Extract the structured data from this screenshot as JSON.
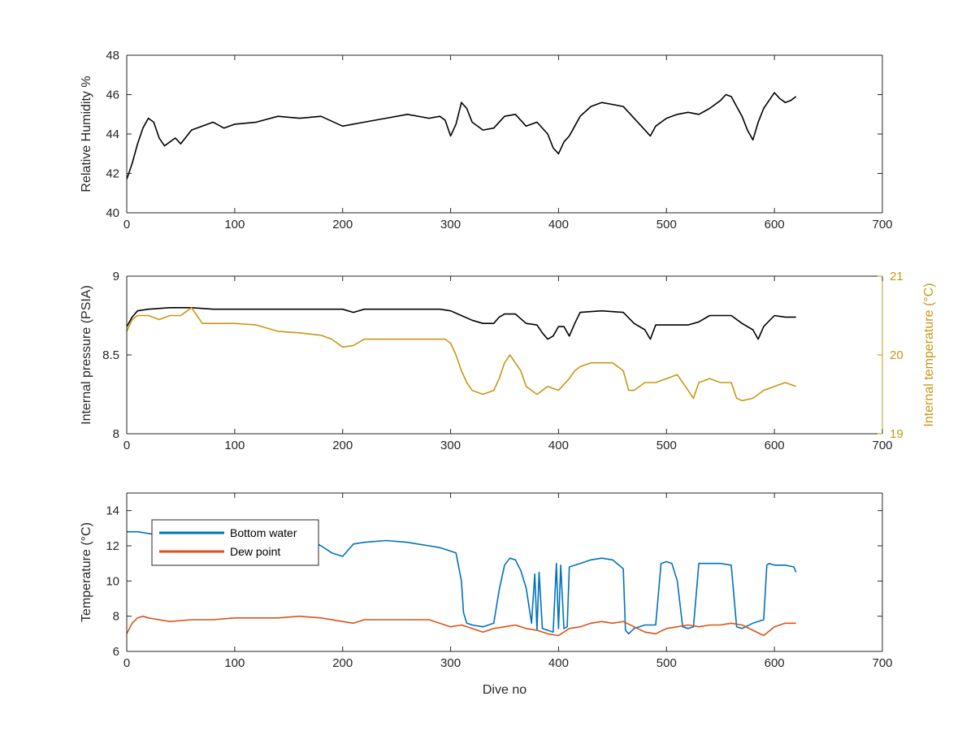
{
  "chart_data": [
    {
      "type": "line",
      "title": "",
      "xlabel": "",
      "ylabel": "Relative Humidity %",
      "xlim": [
        0,
        700
      ],
      "ylim": [
        40,
        48
      ],
      "xticks": [
        "0",
        "100",
        "200",
        "300",
        "400",
        "500",
        "600",
        "700"
      ],
      "yticks": [
        "40",
        "42",
        "44",
        "46",
        "48"
      ],
      "grid": false,
      "series": [
        {
          "color": "#000000",
          "x": [
            0,
            5,
            10,
            15,
            20,
            25,
            30,
            35,
            40,
            45,
            50,
            60,
            70,
            80,
            90,
            100,
            120,
            140,
            160,
            180,
            200,
            220,
            240,
            260,
            280,
            290,
            295,
            300,
            305,
            310,
            315,
            320,
            330,
            340,
            350,
            360,
            370,
            380,
            390,
            395,
            400,
            405,
            410,
            415,
            420,
            430,
            440,
            450,
            460,
            470,
            480,
            485,
            490,
            500,
            510,
            520,
            530,
            540,
            550,
            555,
            560,
            565,
            570,
            575,
            580,
            585,
            590,
            595,
            600,
            605,
            610,
            615,
            620
          ],
          "y": [
            41.7,
            42.5,
            43.5,
            44.3,
            44.8,
            44.6,
            43.8,
            43.4,
            43.6,
            43.8,
            43.5,
            44.2,
            44.4,
            44.6,
            44.3,
            44.5,
            44.6,
            44.9,
            44.8,
            44.9,
            44.4,
            44.6,
            44.8,
            45.0,
            44.8,
            44.9,
            44.7,
            43.9,
            44.5,
            45.6,
            45.3,
            44.6,
            44.2,
            44.3,
            44.9,
            45.0,
            44.4,
            44.6,
            44.0,
            43.3,
            43.0,
            43.6,
            43.9,
            44.4,
            44.9,
            45.4,
            45.6,
            45.5,
            45.4,
            44.8,
            44.2,
            43.9,
            44.4,
            44.8,
            45.0,
            45.1,
            45.0,
            45.3,
            45.7,
            46.0,
            45.9,
            45.4,
            44.9,
            44.2,
            43.7,
            44.6,
            45.3,
            45.7,
            46.1,
            45.8,
            45.6,
            45.7,
            45.9
          ]
        }
      ]
    },
    {
      "type": "line",
      "title": "",
      "xlabel": "",
      "ylabel": "Internal pressure (PSIA)",
      "y2label": "Internal temperature (°C)",
      "xlim": [
        0,
        700
      ],
      "ylim": [
        8,
        9
      ],
      "y2lim": [
        19,
        21
      ],
      "xticks": [
        "0",
        "100",
        "200",
        "300",
        "400",
        "500",
        "600",
        "700"
      ],
      "yticks": [
        "8",
        "8.5",
        "9"
      ],
      "y2ticks": [
        "19",
        "20",
        "21"
      ],
      "grid": false,
      "series": [
        {
          "axis": "left",
          "color": "#000000",
          "x": [
            0,
            5,
            10,
            20,
            40,
            60,
            80,
            100,
            150,
            200,
            210,
            220,
            250,
            290,
            300,
            310,
            320,
            330,
            340,
            345,
            350,
            360,
            370,
            380,
            385,
            390,
            395,
            400,
            405,
            410,
            415,
            420,
            440,
            460,
            470,
            480,
            485,
            490,
            500,
            520,
            530,
            540,
            560,
            570,
            580,
            585,
            590,
            600,
            610,
            620
          ],
          "y": [
            8.68,
            8.74,
            8.78,
            8.79,
            8.8,
            8.8,
            8.79,
            8.79,
            8.79,
            8.79,
            8.77,
            8.79,
            8.79,
            8.79,
            8.78,
            8.75,
            8.72,
            8.7,
            8.7,
            8.74,
            8.76,
            8.76,
            8.7,
            8.69,
            8.64,
            8.6,
            8.62,
            8.68,
            8.68,
            8.62,
            8.7,
            8.77,
            8.78,
            8.77,
            8.7,
            8.66,
            8.6,
            8.69,
            8.69,
            8.69,
            8.71,
            8.75,
            8.75,
            8.7,
            8.66,
            8.6,
            8.68,
            8.75,
            8.74,
            8.74
          ]
        },
        {
          "axis": "right",
          "color": "#C89713",
          "x": [
            0,
            5,
            10,
            20,
            30,
            40,
            50,
            60,
            70,
            80,
            100,
            120,
            140,
            160,
            180,
            190,
            200,
            210,
            220,
            240,
            260,
            280,
            290,
            295,
            300,
            305,
            310,
            315,
            320,
            330,
            340,
            345,
            350,
            355,
            360,
            365,
            370,
            380,
            390,
            400,
            410,
            415,
            420,
            430,
            440,
            450,
            460,
            465,
            470,
            480,
            490,
            500,
            510,
            520,
            525,
            530,
            540,
            550,
            560,
            565,
            570,
            580,
            590,
            600,
            610,
            620
          ],
          "y": [
            20.3,
            20.45,
            20.5,
            20.5,
            20.45,
            20.5,
            20.5,
            20.6,
            20.4,
            20.4,
            20.4,
            20.38,
            20.3,
            20.28,
            20.25,
            20.2,
            20.1,
            20.12,
            20.2,
            20.2,
            20.2,
            20.2,
            20.2,
            20.2,
            20.15,
            20.0,
            19.8,
            19.65,
            19.55,
            19.5,
            19.55,
            19.7,
            19.9,
            20.0,
            19.9,
            19.8,
            19.6,
            19.5,
            19.6,
            19.55,
            19.7,
            19.8,
            19.85,
            19.9,
            19.9,
            19.9,
            19.8,
            19.55,
            19.55,
            19.65,
            19.65,
            19.7,
            19.75,
            19.55,
            19.45,
            19.65,
            19.7,
            19.65,
            19.65,
            19.45,
            19.42,
            19.45,
            19.55,
            19.6,
            19.65,
            19.6
          ]
        }
      ]
    },
    {
      "type": "line",
      "title": "",
      "xlabel": "Dive no",
      "ylabel": "Temperature (°C)",
      "xlim": [
        0,
        700
      ],
      "ylim": [
        6,
        15
      ],
      "xticks": [
        "0",
        "100",
        "200",
        "300",
        "400",
        "500",
        "600",
        "700"
      ],
      "yticks": [
        "6",
        "8",
        "10",
        "12",
        "14"
      ],
      "grid": false,
      "legend_position": "top-left",
      "series": [
        {
          "name": "Bottom water",
          "color": "#0072BD",
          "x": [
            0,
            10,
            20,
            30,
            50,
            80,
            120,
            150,
            170,
            180,
            190,
            200,
            210,
            220,
            240,
            260,
            280,
            290,
            300,
            305,
            310,
            312,
            315,
            320,
            330,
            340,
            345,
            350,
            355,
            360,
            365,
            370,
            375,
            378,
            380,
            382,
            385,
            390,
            395,
            398,
            400,
            402,
            405,
            408,
            410,
            420,
            430,
            440,
            450,
            460,
            462,
            465,
            470,
            480,
            490,
            495,
            500,
            505,
            510,
            515,
            520,
            525,
            530,
            535,
            540,
            550,
            560,
            565,
            570,
            580,
            590,
            593,
            595,
            600,
            610,
            618,
            620
          ],
          "y": [
            12.8,
            12.8,
            12.7,
            12.6,
            12.6,
            12.5,
            12.4,
            12.4,
            12.3,
            12.0,
            11.6,
            11.4,
            12.1,
            12.2,
            12.3,
            12.2,
            12.0,
            11.9,
            11.7,
            11.6,
            10.0,
            8.2,
            7.6,
            7.5,
            7.4,
            7.6,
            9.5,
            10.9,
            11.3,
            11.2,
            10.6,
            9.6,
            7.6,
            10.4,
            7.2,
            10.5,
            7.3,
            7.2,
            7.1,
            11.0,
            7.3,
            10.9,
            7.3,
            7.4,
            10.8,
            11.0,
            11.2,
            11.3,
            11.2,
            10.7,
            7.2,
            7.0,
            7.3,
            7.5,
            7.5,
            11.0,
            11.1,
            11.0,
            10.0,
            7.4,
            7.3,
            7.4,
            11.0,
            11.0,
            11.0,
            11.0,
            10.9,
            7.4,
            7.3,
            7.6,
            7.8,
            10.9,
            11.0,
            10.9,
            10.9,
            10.8,
            10.5
          ]
        },
        {
          "name": "Dew point",
          "color": "#D95319",
          "x": [
            0,
            5,
            10,
            15,
            20,
            30,
            40,
            60,
            80,
            100,
            120,
            140,
            160,
            180,
            200,
            210,
            220,
            240,
            260,
            280,
            300,
            310,
            320,
            330,
            340,
            350,
            360,
            370,
            380,
            390,
            400,
            410,
            420,
            430,
            440,
            450,
            460,
            470,
            480,
            490,
            500,
            510,
            520,
            530,
            540,
            550,
            560,
            570,
            580,
            590,
            600,
            610,
            620
          ],
          "y": [
            7.0,
            7.6,
            7.9,
            8.0,
            7.9,
            7.8,
            7.7,
            7.8,
            7.8,
            7.9,
            7.9,
            7.9,
            8.0,
            7.9,
            7.7,
            7.6,
            7.8,
            7.8,
            7.8,
            7.8,
            7.4,
            7.5,
            7.3,
            7.1,
            7.3,
            7.4,
            7.5,
            7.3,
            7.2,
            7.0,
            6.9,
            7.3,
            7.4,
            7.6,
            7.7,
            7.6,
            7.7,
            7.4,
            7.1,
            7.0,
            7.3,
            7.4,
            7.5,
            7.4,
            7.5,
            7.5,
            7.6,
            7.5,
            7.2,
            6.9,
            7.4,
            7.6,
            7.6
          ]
        }
      ]
    }
  ]
}
